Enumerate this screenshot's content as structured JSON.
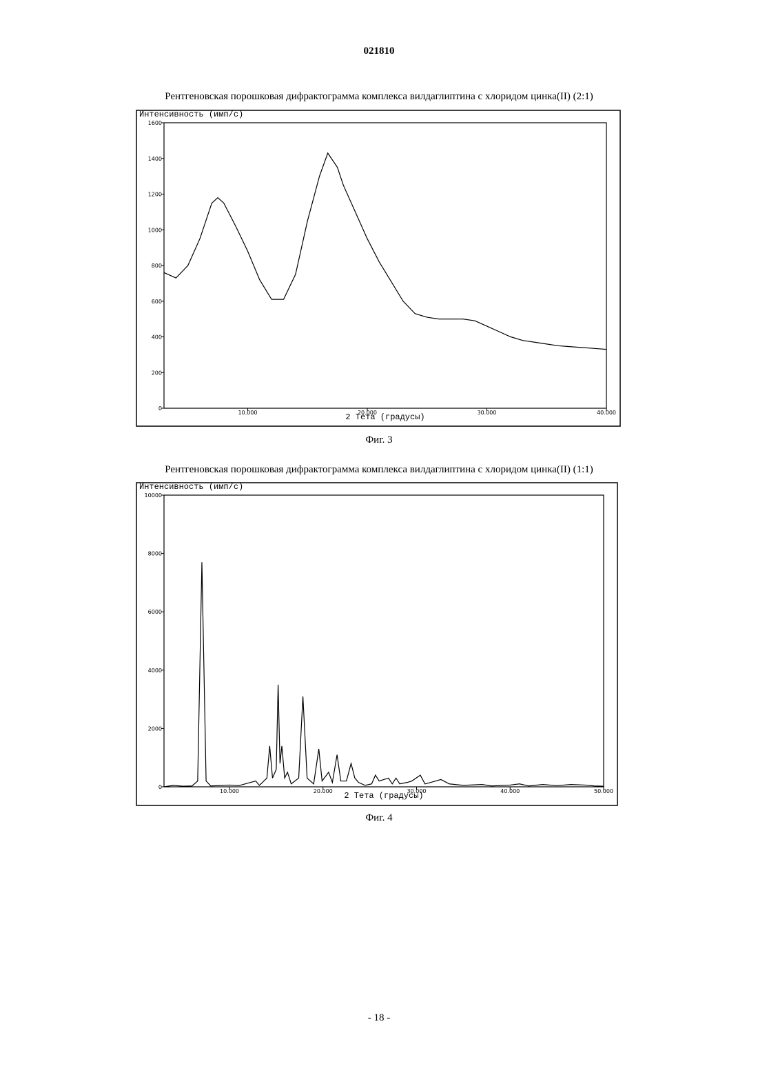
{
  "header": {
    "number": "021810"
  },
  "footer": {
    "page": "- 18 -"
  },
  "chart_data": [
    {
      "type": "line",
      "title": "Рентгеновская порошковая дифрактограмма комплекса вилдаглиптина с хлоридом цинка(II) (2:1)",
      "y_label": "Интенсивность (имп/с)",
      "x_label": "2 Тета (градусы)",
      "caption": "Фиг. 3",
      "color": "#000000",
      "xlim": [
        3,
        40
      ],
      "ylim": [
        0,
        1600
      ],
      "xticks": [
        {
          "value": 10,
          "label": "10.000"
        },
        {
          "value": 20,
          "label": "20.000"
        },
        {
          "value": 30,
          "label": "30.000"
        },
        {
          "value": 40,
          "label": "40.000"
        }
      ],
      "yticks": [
        0,
        200,
        400,
        600,
        800,
        1000,
        1200,
        1400,
        1600
      ],
      "x": [
        3,
        4,
        5,
        6,
        7,
        7.5,
        8,
        9,
        10,
        11,
        12,
        13,
        14,
        15,
        16,
        16.7,
        17.5,
        18,
        19,
        20,
        21,
        22,
        23,
        24,
        25,
        26,
        27,
        28,
        29,
        30,
        31,
        32,
        33,
        34,
        35,
        36,
        37,
        38,
        39,
        40
      ],
      "values": [
        760,
        730,
        800,
        950,
        1150,
        1180,
        1150,
        1020,
        880,
        720,
        610,
        610,
        750,
        1050,
        1300,
        1430,
        1350,
        1250,
        1100,
        950,
        820,
        710,
        600,
        530,
        510,
        500,
        500,
        500,
        490,
        460,
        430,
        400,
        380,
        370,
        360,
        350,
        345,
        340,
        335,
        330
      ]
    },
    {
      "type": "line",
      "title": "Рентгеновская порошковая дифрактограмма комплекса вилдаглиптина с хлоридом цинка(II) (1:1)",
      "y_label": "Интенсивность (имп/с)",
      "x_label": "2 Тета (градусы)",
      "caption": "Фиг. 4",
      "color": "#000000",
      "xlim": [
        3,
        50
      ],
      "ylim": [
        0,
        10000
      ],
      "xticks": [
        {
          "value": 10,
          "label": "10.000"
        },
        {
          "value": 20,
          "label": "20.000"
        },
        {
          "value": 30,
          "label": "30.000"
        },
        {
          "value": 40,
          "label": "40.000"
        },
        {
          "value": 50,
          "label": "50.000"
        }
      ],
      "yticks": [
        0,
        2000,
        4000,
        6000,
        8000,
        10000
      ],
      "x": [
        3,
        4,
        5,
        6,
        6.6,
        7.05,
        7.5,
        8,
        10,
        11,
        12.8,
        13.2,
        14,
        14.3,
        14.6,
        15,
        15.2,
        15.4,
        15.6,
        15.9,
        16.2,
        16.6,
        17.4,
        17.85,
        18.3,
        19,
        19.55,
        19.9,
        20.6,
        21,
        21.5,
        21.9,
        22.5,
        23,
        23.4,
        23.8,
        24.5,
        25.2,
        25.6,
        26,
        26.5,
        27,
        27.4,
        27.8,
        28.2,
        29,
        29.5,
        30.4,
        30.9,
        31.5,
        32.6,
        33.5,
        35,
        37,
        38,
        40,
        41,
        42,
        43.5,
        45,
        46.5,
        48,
        49,
        50
      ],
      "values": [
        0,
        50,
        20,
        30,
        200,
        7700,
        200,
        30,
        60,
        40,
        200,
        50,
        300,
        1400,
        300,
        600,
        3500,
        800,
        1400,
        300,
        500,
        100,
        300,
        3100,
        300,
        100,
        1300,
        200,
        500,
        150,
        1100,
        200,
        200,
        800,
        300,
        150,
        50,
        100,
        400,
        200,
        250,
        300,
        100,
        300,
        100,
        150,
        200,
        400,
        100,
        150,
        250,
        100,
        50,
        80,
        30,
        60,
        100,
        30,
        80,
        40,
        80,
        60,
        30,
        20
      ]
    }
  ]
}
